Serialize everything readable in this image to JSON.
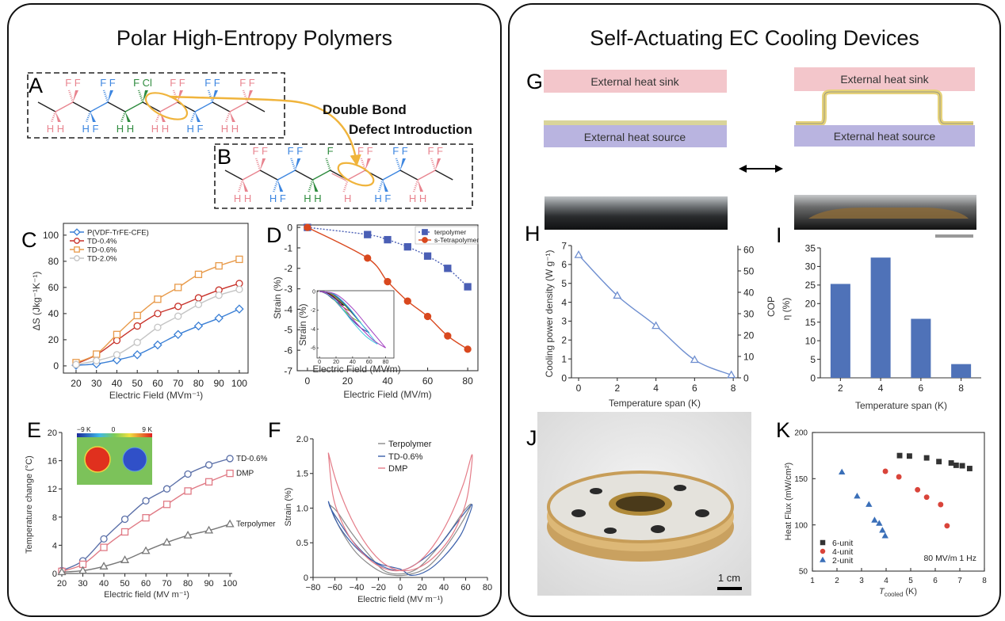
{
  "panels": {
    "left_title": "Polar High-Entropy Polymers",
    "right_title": "Self-Actuating EC Cooling Devices"
  },
  "panel_letters": {
    "A": "A",
    "B": "B",
    "C": "C",
    "D": "D",
    "E": "E",
    "F": "F",
    "G": "G",
    "H": "H",
    "I": "I",
    "J": "J",
    "K": "K"
  },
  "colors": {
    "pink": "#e8848f",
    "blue": "#3d86e0",
    "green": "#2e8b3e",
    "bond": "#222222",
    "highlight": "#f0b43c",
    "heat_sink": "#f3c6cb",
    "heat_source": "#b9b4e0",
    "ec_layer": "#e9d98a"
  },
  "molecules": {
    "A": {
      "vertices": [
        {
          "pos": "bottom",
          "label": "HH",
          "color": "pink"
        },
        {
          "pos": "top",
          "label": "FF",
          "color": "pink"
        },
        {
          "pos": "bottom",
          "label": "HF",
          "color": "blue"
        },
        {
          "pos": "top",
          "label": "FF",
          "color": "blue"
        },
        {
          "pos": "bottom",
          "label": "HH",
          "color": "green"
        },
        {
          "pos": "top",
          "label": "FCl",
          "color": "green"
        },
        {
          "pos": "bottom",
          "label": "HH",
          "color": "pink"
        },
        {
          "pos": "top",
          "label": "FF",
          "color": "pink"
        },
        {
          "pos": "bottom",
          "label": "HF",
          "color": "blue"
        },
        {
          "pos": "top",
          "label": "FF",
          "color": "blue"
        },
        {
          "pos": "bottom",
          "label": "HH",
          "color": "pink"
        },
        {
          "pos": "top",
          "label": "FF",
          "color": "pink"
        }
      ]
    },
    "B": {
      "vertices": [
        {
          "pos": "bottom",
          "label": "HH",
          "color": "pink"
        },
        {
          "pos": "top",
          "label": "FF",
          "color": "pink"
        },
        {
          "pos": "bottom",
          "label": "HF",
          "color": "blue"
        },
        {
          "pos": "top",
          "label": "FF",
          "color": "blue"
        },
        {
          "pos": "bottom",
          "label": "HH",
          "color": "green"
        },
        {
          "pos": "top",
          "label": "F",
          "color": "green"
        },
        {
          "pos": "bottom",
          "label": "H",
          "color": "pink"
        },
        {
          "pos": "top",
          "label": "FF",
          "color": "pink"
        },
        {
          "pos": "bottom",
          "label": "HF",
          "color": "blue"
        },
        {
          "pos": "top",
          "label": "FF",
          "color": "blue"
        },
        {
          "pos": "bottom",
          "label": "HH",
          "color": "pink"
        },
        {
          "pos": "top",
          "label": "FF",
          "color": "pink"
        }
      ]
    }
  },
  "annotation": {
    "line1": "Double Bond",
    "line2": "Defect Introduction"
  },
  "device": {
    "heat_sink": "External heat sink",
    "heat_source": "External heat source"
  },
  "photo_J": {
    "scale_label": "1 cm"
  },
  "inset_E": {
    "cbar_min": "−9 K",
    "cbar_mid": "0",
    "cbar_max": "9 K"
  },
  "chart_data": [
    {
      "panel": "C",
      "type": "line",
      "xlabel": "Electric Field (MVm⁻¹)",
      "ylabel": "ΔS (Jkg⁻¹K⁻¹)",
      "xticks": [
        "20",
        "30",
        "40",
        "50",
        "60",
        "70",
        "80",
        "90",
        "100"
      ],
      "yticks": [
        "0",
        "20",
        "40",
        "60",
        "80",
        "100"
      ],
      "xlim": [
        13.8,
        104.3
      ],
      "ylim": [
        -5.5,
        109
      ],
      "grid": false,
      "legend": "top-left",
      "x": [
        20,
        30,
        40,
        50,
        60,
        70,
        80,
        90,
        100
      ],
      "series": [
        {
          "name": "P(VDF-TrFE-CFE)",
          "color": "#3a7fd5",
          "marker": "diamond",
          "values": [
            0.5,
            1.5,
            4.5,
            8.5,
            16,
            24,
            30.5,
            36.5,
            43.5
          ]
        },
        {
          "name": "TD-0.4%",
          "color": "#c8322a",
          "marker": "circle",
          "values": [
            1.5,
            8.5,
            19.5,
            30.5,
            40,
            45.5,
            52,
            58,
            63
          ]
        },
        {
          "name": "TD-0.6%",
          "color": "#e89a4a",
          "marker": "square",
          "values": [
            2.5,
            9,
            24,
            38.5,
            51,
            60,
            70,
            76.5,
            81.5
          ]
        },
        {
          "name": "TD-2.0%",
          "color": "#c4c4c4",
          "marker": "circle",
          "values": [
            1,
            4,
            8.5,
            18,
            29.5,
            38,
            47,
            54,
            58.5
          ]
        }
      ]
    },
    {
      "panel": "D",
      "type": "line",
      "xlabel": "Electric Field (MV/m)",
      "ylabel": "Strain (%)",
      "xticks": [
        "0",
        "20",
        "40",
        "60",
        "80"
      ],
      "yticks": [
        "0",
        "-1",
        "-2",
        "-3",
        "-4",
        "-5",
        "-6",
        "-7"
      ],
      "xlim": [
        -5.1,
        85.1
      ],
      "ylim": [
        -7.0,
        0.12
      ],
      "grid": false,
      "legend": "top-right",
      "x": [
        0,
        30,
        40,
        50,
        60,
        70,
        80
      ],
      "series": [
        {
          "name": "terpolymer",
          "color": "#4a5fb5",
          "marker": "square",
          "filled": true,
          "dash": true,
          "values": [
            0,
            -0.35,
            -0.6,
            -0.95,
            -1.4,
            -2.0,
            -2.9
          ]
        },
        {
          "name": "s-Tetrapolymer",
          "color": "#d9481e",
          "marker": "circle",
          "filled": true,
          "values": [
            0,
            -1.5,
            -2.65,
            -3.6,
            -4.35,
            -5.3,
            -5.95
          ]
        }
      ]
    },
    {
      "panel": "D-inset",
      "type": "line",
      "xlabel": "Electric Field (MV/m)",
      "ylabel": "Strain (%)",
      "xticks": [
        "0",
        "20",
        "40",
        "60",
        "80"
      ],
      "yticks": [
        "0",
        "-2",
        "-4",
        "-6"
      ],
      "xlim": [
        -8,
        90.8
      ],
      "ylim": [
        -7.08,
        0.08
      ],
      "loops": [
        {
          "max_field": 30,
          "min_strain": -1.5,
          "color": "#111111"
        },
        {
          "max_field": 40,
          "min_strain": -2.2,
          "color": "#d0302a"
        },
        {
          "max_field": 50,
          "min_strain": -3.3,
          "color": "#6fbf2a"
        },
        {
          "max_field": 60,
          "min_strain": -4.4,
          "color": "#2a2f9a"
        },
        {
          "max_field": 70,
          "min_strain": -5.6,
          "color": "#3fc6e0"
        },
        {
          "max_field": 80,
          "min_strain": -6.0,
          "color": "#a33fc0"
        }
      ]
    },
    {
      "panel": "E",
      "type": "line",
      "xlabel": "Electric field (MV m⁻¹)",
      "ylabel": "Temperature change (°C)",
      "xticks": [
        "20",
        "30",
        "40",
        "50",
        "60",
        "70",
        "80",
        "90",
        "100"
      ],
      "yticks": [
        "0",
        "4",
        "8",
        "12",
        "16",
        "20"
      ],
      "xlim": [
        20,
        101.1
      ],
      "ylim": [
        0,
        20
      ],
      "grid": false,
      "x": [
        20,
        30,
        40,
        50,
        60,
        70,
        80,
        90,
        100
      ],
      "series": [
        {
          "name": "TD-0.6%",
          "color": "#5a6fa8",
          "marker": "circle",
          "values": [
            0.4,
            1.8,
            4.9,
            7.7,
            10.3,
            12,
            14.1,
            15.4,
            16.3
          ]
        },
        {
          "name": "DMP",
          "color": "#e07a85",
          "marker": "square",
          "values": [
            0.3,
            1.3,
            3.7,
            5.9,
            7.9,
            9.8,
            11.7,
            13,
            14.2
          ]
        },
        {
          "name": "Terpolymer",
          "color": "#777777",
          "marker": "triangle",
          "values": [
            0.2,
            0.4,
            1,
            1.9,
            3.2,
            4.4,
            5.4,
            6.1,
            7
          ]
        }
      ]
    },
    {
      "panel": "F",
      "type": "line",
      "xlabel": "Electric field (MV m⁻¹)",
      "ylabel": "Strain (%)",
      "xticks": [
        "−80",
        "−60",
        "−40",
        "−20",
        "0",
        "20",
        "40",
        "60",
        "80"
      ],
      "yticks": [
        "0",
        "0.5",
        "1.0",
        "1.5",
        "2.0"
      ],
      "xlim": [
        -80,
        80
      ],
      "ylim": [
        0,
        2
      ],
      "grid": false,
      "legend": "top-center",
      "series": [
        {
          "name": "Terpolymer",
          "color": "#8a8a8a",
          "x": [
            -65,
            -55,
            -40,
            -20,
            -5,
            10,
            25,
            40,
            55,
            65,
            58,
            45,
            30,
            15,
            0,
            -15,
            -30,
            -45,
            -58,
            -65
          ],
          "y": [
            1.05,
            0.7,
            0.35,
            0.1,
            0.03,
            0.05,
            0.15,
            0.4,
            0.75,
            1.05,
            0.95,
            0.65,
            0.35,
            0.12,
            0.05,
            0.1,
            0.35,
            0.65,
            0.95,
            1.05
          ]
        },
        {
          "name": "TD-0.6%",
          "color": "#3a5faa",
          "x": [
            -66,
            -60,
            -50,
            -35,
            -20,
            0,
            10,
            25,
            40,
            55,
            62,
            66,
            60,
            50,
            35,
            15,
            0,
            -15,
            -30,
            -45,
            -58,
            -64,
            -66
          ],
          "y": [
            1.1,
            0.85,
            0.6,
            0.35,
            0.2,
            0.12,
            0.03,
            0.1,
            0.3,
            0.6,
            0.85,
            1.05,
            0.95,
            0.75,
            0.45,
            0.2,
            0.1,
            0.15,
            0.3,
            0.55,
            0.85,
            1.0,
            1.1
          ]
        },
        {
          "name": "DMP",
          "color": "#e47c88",
          "x": [
            -66,
            -58,
            -45,
            -30,
            -15,
            0,
            15,
            30,
            45,
            55,
            62,
            66,
            58,
            45,
            30,
            15,
            0,
            -15,
            -30,
            -45,
            -55,
            -62,
            -66
          ],
          "y": [
            1.8,
            1.35,
            0.85,
            0.45,
            0.2,
            0.1,
            0.13,
            0.28,
            0.55,
            0.85,
            1.2,
            1.77,
            1.35,
            0.85,
            0.45,
            0.2,
            0.1,
            0.13,
            0.28,
            0.55,
            0.85,
            1.2,
            1.8
          ]
        }
      ]
    },
    {
      "panel": "H",
      "type": "line",
      "xlabel": "Temperature span (K)",
      "ylabel": "Cooling power density (W g⁻¹)",
      "y2label": "COP",
      "xticks": [
        "0",
        "2",
        "4",
        "6",
        "8"
      ],
      "yticks": [
        "0",
        "1",
        "2",
        "3",
        "4",
        "5",
        "6",
        "7"
      ],
      "y2ticks": [
        "0",
        "10",
        "20",
        "30",
        "40",
        "50",
        "60"
      ],
      "xlim": [
        -0.37,
        8.24
      ],
      "ylim": [
        0,
        7
      ],
      "y2lim": [
        0,
        60
      ],
      "grid": false,
      "series": [
        {
          "color": "#6f8fd0",
          "marker": "triangle",
          "x": [
            0,
            2,
            4,
            6,
            7.9
          ],
          "values": [
            6.5,
            4.35,
            2.75,
            0.95,
            0.15
          ]
        }
      ]
    },
    {
      "panel": "I",
      "type": "bar",
      "xlabel": "Temperature span (K)",
      "ylabel": "η (%)",
      "categories": [
        "2",
        "4",
        "6",
        "8"
      ],
      "values": [
        25.3,
        32.4,
        15.9,
        3.7
      ],
      "yticks": [
        "0",
        "5",
        "10",
        "15",
        "20",
        "25",
        "30",
        "35"
      ],
      "xlim": [
        1,
        9
      ],
      "ylim": [
        0,
        35
      ],
      "color": "#4f72b8",
      "grid": false
    },
    {
      "panel": "K",
      "type": "scatter",
      "xlabel_symbol": "T",
      "xlabel_sub": "cooled",
      "xlabel_unit": " (K)",
      "ylabel": "Heat Flux (mW/cm²)",
      "xticks": [
        "1",
        "2",
        "3",
        "4",
        "5",
        "6",
        "7",
        "8"
      ],
      "yticks": [
        "50",
        "100",
        "150",
        "200"
      ],
      "xlim": [
        1,
        8
      ],
      "ylim": [
        50,
        200
      ],
      "grid": false,
      "legend": "bottom-left",
      "annotation": "80 MV/m 1 Hz",
      "series": [
        {
          "name": "6-unit",
          "color": "#333333",
          "marker": "square",
          "filled": true,
          "x": [
            4.55,
            4.95,
            5.65,
            6.15,
            6.65,
            6.85,
            7.1,
            7.4
          ],
          "values": [
            175,
            174.5,
            172.5,
            168.5,
            167,
            164.5,
            164,
            161
          ]
        },
        {
          "name": "4-unit",
          "color": "#d9443a",
          "marker": "circle",
          "filled": true,
          "x": [
            3.97,
            4.52,
            5.28,
            5.65,
            6.22,
            6.48
          ],
          "values": [
            158,
            152,
            138,
            130,
            122,
            99
          ]
        },
        {
          "name": "2-unit",
          "color": "#3a6fb8",
          "marker": "triangle",
          "filled": true,
          "x": [
            2.2,
            2.82,
            3.3,
            3.53,
            3.72,
            3.85,
            3.96
          ],
          "values": [
            157,
            131,
            122,
            105,
            101.5,
            94,
            88
          ]
        }
      ]
    }
  ]
}
